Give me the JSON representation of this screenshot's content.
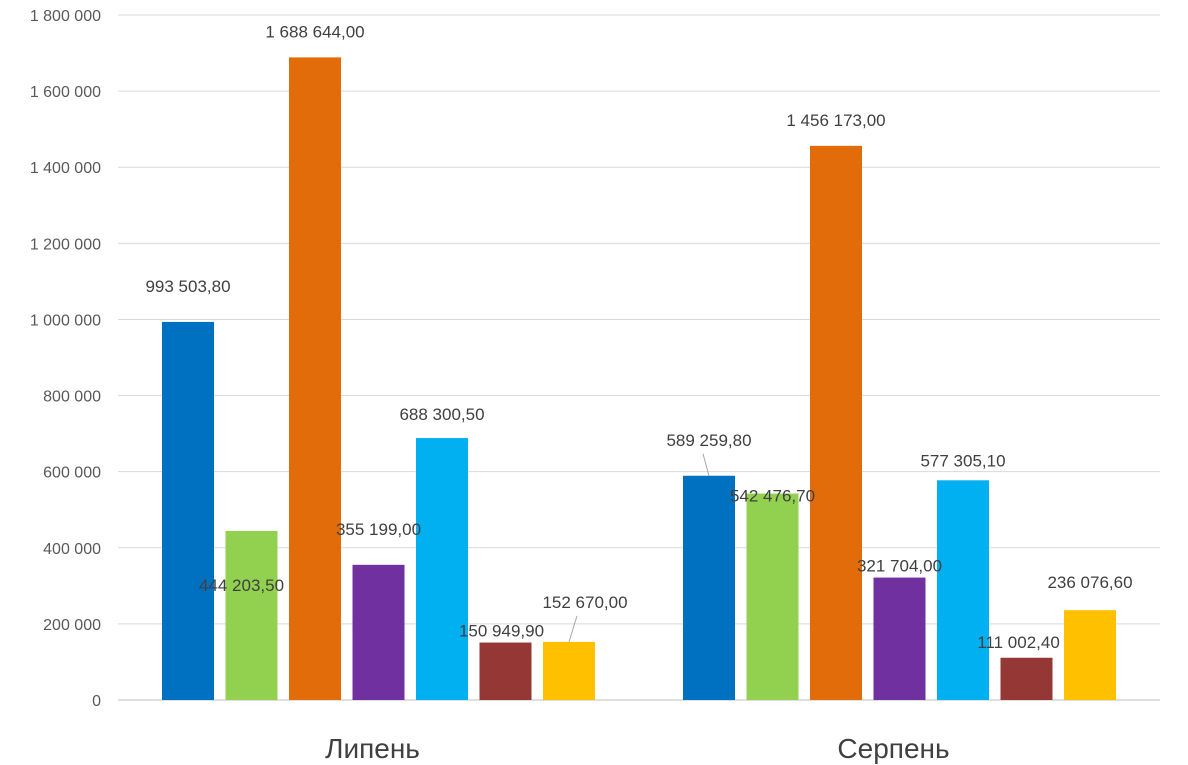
{
  "chart_data": {
    "type": "bar",
    "categories": [
      "Липень",
      "Серпень"
    ],
    "series": [
      {
        "color": "#0070C0",
        "values": [
          993503.8,
          589259.8
        ],
        "labels": [
          "993 503,80",
          "589 259,80"
        ]
      },
      {
        "color": "#92D050",
        "values": [
          444203.5,
          542476.7
        ],
        "labels": [
          "444 203,50",
          "542 476,70"
        ]
      },
      {
        "color": "#E36C0A",
        "values": [
          1688644.0,
          1456173.0
        ],
        "labels": [
          "1 688 644,00",
          "1 456 173,00"
        ]
      },
      {
        "color": "#7030A0",
        "values": [
          355199.0,
          321704.0
        ],
        "labels": [
          "355 199,00",
          "321 704,00"
        ]
      },
      {
        "color": "#00B0F0",
        "values": [
          688300.5,
          577305.1
        ],
        "labels": [
          "688 300,50",
          "577 305,10"
        ]
      },
      {
        "color": "#953735",
        "values": [
          150949.9,
          111002.4
        ],
        "labels": [
          "150 949,90",
          "111 002,40"
        ]
      },
      {
        "color": "#FFC000",
        "values": [
          152670.0,
          236076.6
        ],
        "labels": [
          "152 670,00",
          "236 076,60"
        ]
      }
    ],
    "y_ticks": [
      0,
      200000,
      400000,
      600000,
      800000,
      1000000,
      1200000,
      1400000,
      1600000,
      1800000
    ],
    "y_tick_labels": [
      "0",
      "200 000",
      "400 000",
      "600 000",
      "800 000",
      "1 000 000",
      "1 200 000",
      "1 400 000",
      "1 600 000",
      "1 800 000"
    ],
    "ylim": [
      0,
      1800000
    ],
    "title": "",
    "xlabel": "",
    "ylabel": "",
    "grid": true,
    "legend": "none"
  }
}
